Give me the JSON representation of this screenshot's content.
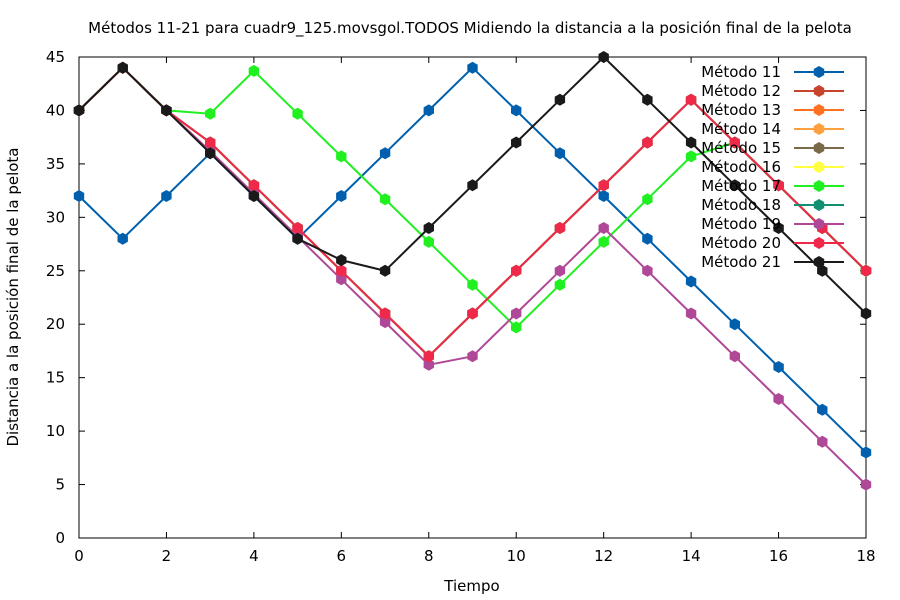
{
  "chart_data": {
    "type": "line",
    "title": "Métodos 11-21 para cuadr9_125.movsgol.TODOS Midiendo la distancia a la posición final de la pelota",
    "xlabel": "Tiempo",
    "ylabel": "Distancia a la posición final de la pelota",
    "xlim": [
      0,
      18
    ],
    "ylim": [
      0,
      45
    ],
    "xticks": [
      0,
      2,
      4,
      6,
      8,
      10,
      12,
      14,
      16,
      18
    ],
    "yticks": [
      0,
      5,
      10,
      15,
      20,
      25,
      30,
      35,
      40,
      45
    ],
    "grid": false,
    "legend_position": "top-right",
    "x": [
      0,
      1,
      2,
      3,
      4,
      5,
      6,
      7,
      8,
      9,
      10,
      11,
      12,
      13,
      14,
      15,
      16,
      17,
      18
    ],
    "series": [
      {
        "name": "Método 11",
        "color": "#0060ad",
        "values": [
          32,
          28,
          32,
          36,
          32,
          28,
          32,
          36,
          40,
          44,
          40,
          36,
          32,
          28,
          24,
          20,
          16,
          12,
          8
        ]
      },
      {
        "name": "Método 12",
        "color": "#c8442c",
        "values": [
          40,
          44,
          40,
          37,
          33,
          29,
          25,
          21,
          17,
          21,
          25,
          29,
          33,
          37,
          41,
          37,
          33,
          29,
          25
        ]
      },
      {
        "name": "Método 13",
        "color": "#ff7020",
        "values": [
          40,
          44,
          40,
          37,
          33,
          29,
          25,
          21,
          17,
          21,
          25,
          29,
          33,
          37,
          41,
          37,
          33,
          29,
          25
        ]
      },
      {
        "name": "Método 14",
        "color": "#ffa040",
        "values": [
          40,
          44,
          40,
          37,
          33,
          29,
          25,
          21,
          17,
          21,
          25,
          29,
          33,
          37,
          41,
          37,
          33,
          29,
          25
        ]
      },
      {
        "name": "Método 15",
        "color": "#7a6a4a",
        "values": [
          40,
          44,
          40,
          37,
          33,
          29,
          25,
          21,
          17,
          21,
          25,
          29,
          33,
          37,
          41,
          37,
          33,
          29,
          25
        ]
      },
      {
        "name": "Método 16",
        "color": "#ffff40",
        "values": [
          40,
          44,
          40,
          37,
          33,
          29,
          25,
          21,
          17,
          21,
          25,
          29,
          33,
          37,
          41,
          37,
          33,
          29,
          25
        ]
      },
      {
        "name": "Método 17",
        "color": "#20f020",
        "values": [
          40,
          44,
          40,
          39.7,
          43.7,
          39.7,
          35.7,
          31.7,
          27.7,
          23.7,
          19.7,
          23.7,
          27.7,
          31.7,
          35.7,
          37,
          33,
          29,
          25
        ]
      },
      {
        "name": "Método 18",
        "color": "#109070",
        "values": [
          40,
          44,
          40,
          37,
          33,
          29,
          25,
          21,
          17,
          21,
          25,
          29,
          33,
          37,
          41,
          37,
          33,
          29,
          25
        ]
      },
      {
        "name": "Método 19",
        "color": "#b04898",
        "values": [
          40,
          44,
          40,
          36.2,
          32.2,
          28.2,
          24.2,
          20.2,
          16.2,
          17,
          21,
          25,
          29,
          25,
          21,
          17,
          13,
          9,
          5
        ]
      },
      {
        "name": "Método 20",
        "color": "#f0284a",
        "values": [
          40,
          44,
          40,
          37,
          33,
          29,
          25,
          21,
          17,
          21,
          25,
          29,
          33,
          37,
          41,
          37,
          33,
          29,
          25
        ]
      },
      {
        "name": "Método 21",
        "color": "#1a1a1a",
        "values": [
          40,
          44,
          40,
          36,
          32,
          28,
          26,
          25,
          29,
          33,
          37,
          41,
          45,
          41,
          37,
          33,
          29,
          25,
          21
        ]
      }
    ]
  }
}
